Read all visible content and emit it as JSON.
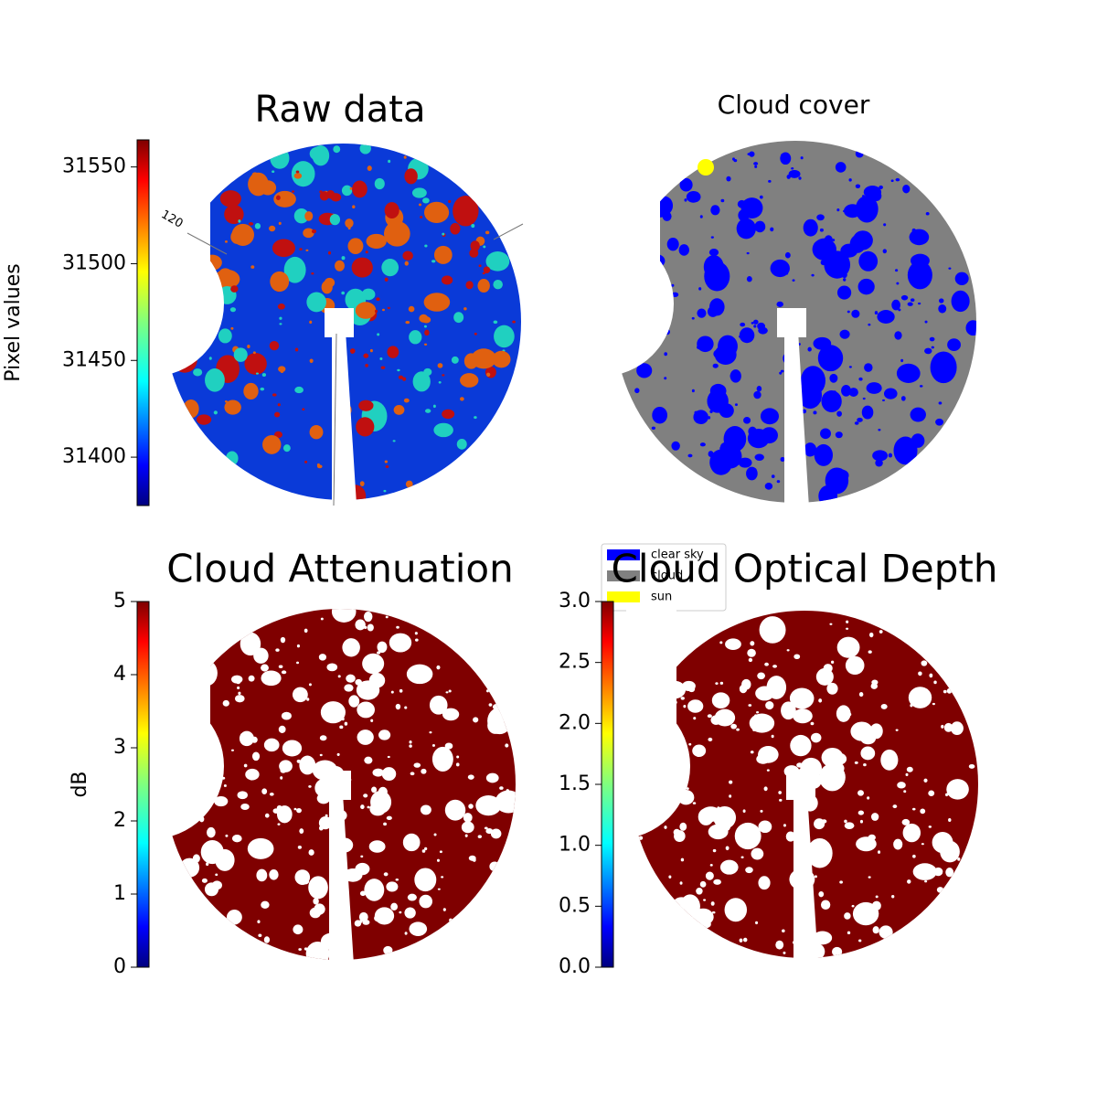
{
  "chart_data": [
    {
      "type": "image",
      "title": "Raw data",
      "colorbar_label": "Pixel values",
      "ylim": [
        31375,
        31564
      ],
      "yticks": [
        31400,
        31450,
        31500,
        31550
      ],
      "annotations": [
        "120"
      ],
      "colormap": "jet"
    },
    {
      "type": "image",
      "title": "Cloud cover",
      "legend": [
        {
          "label": "clear sky",
          "color": "#0000ff"
        },
        {
          "label": "cloud",
          "color": "#808080"
        },
        {
          "label": "sun",
          "color": "#ffff00"
        }
      ]
    },
    {
      "type": "image",
      "title": "Cloud Attenuation",
      "colorbar_label": "dB",
      "ylim": [
        0,
        5
      ],
      "yticks": [
        0,
        1,
        2,
        3,
        4,
        5
      ],
      "colormap": "jet"
    },
    {
      "type": "image",
      "title": "Cloud Optical Depth",
      "ylim": [
        0,
        3
      ],
      "yticks": [
        {
          "value": 0,
          "label": "0.0"
        },
        {
          "value": 0.5,
          "label": "0.5"
        },
        {
          "value": 1,
          "label": "1.0"
        },
        {
          "value": 1.5,
          "label": "1.5"
        },
        {
          "value": 2,
          "label": "2.0"
        },
        {
          "value": 2.5,
          "label": "2.5"
        },
        {
          "value": 3,
          "label": "3.0"
        }
      ],
      "colormap": "jet"
    }
  ]
}
